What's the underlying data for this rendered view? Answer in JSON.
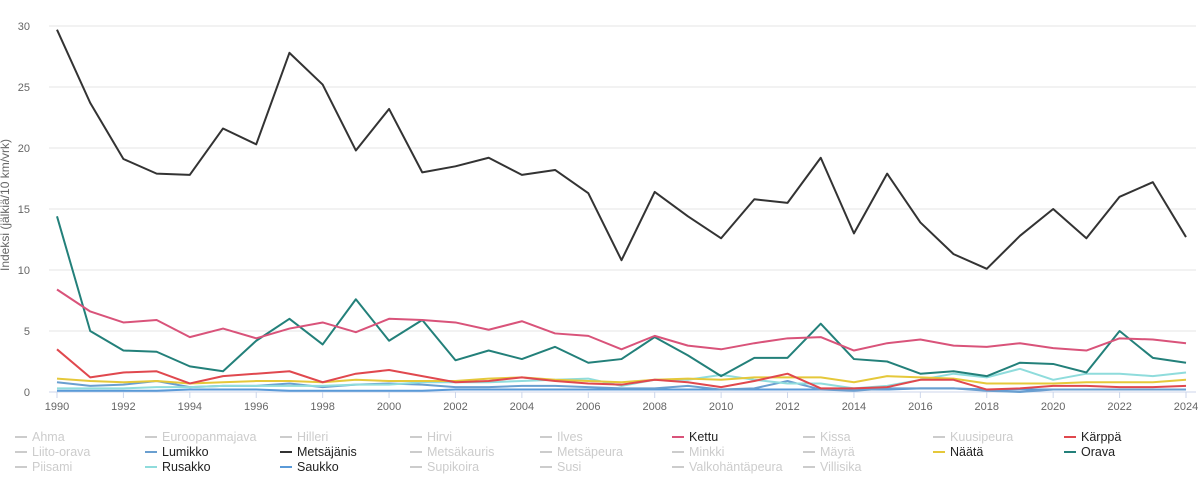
{
  "chart_data": {
    "type": "line",
    "title": "",
    "xlabel": "",
    "ylabel": "Indeksi (jälkiä/10 km/vrk)",
    "ylim": [
      0,
      30
    ],
    "yticks": [
      "0",
      "5",
      "10",
      "15",
      "20",
      "25",
      "30"
    ],
    "xlim": [
      1990,
      2024
    ],
    "xticks": [
      "1990",
      "1992",
      "1994",
      "1996",
      "1998",
      "2000",
      "2002",
      "2004",
      "2006",
      "2008",
      "2010",
      "2012",
      "2014",
      "2016",
      "2018",
      "2020",
      "2022",
      "2024"
    ],
    "grid": true,
    "legend_position": "bottom",
    "x": [
      1990,
      1991,
      1992,
      1993,
      1994,
      1995,
      1996,
      1997,
      1998,
      1999,
      2000,
      2001,
      2002,
      2003,
      2004,
      2005,
      2006,
      2007,
      2008,
      2009,
      2010,
      2011,
      2012,
      2013,
      2014,
      2015,
      2016,
      2017,
      2018,
      2019,
      2020,
      2021,
      2022,
      2023,
      2024
    ],
    "series": [
      {
        "name": "Saukko",
        "color": "#5a9ad8",
        "values": [
          0.1,
          0.1,
          0.1,
          0.1,
          0.2,
          0.2,
          0.2,
          0.1,
          0.1,
          0.1,
          0.1,
          0.1,
          0.2,
          0.2,
          0.2,
          0.2,
          0.2,
          0.2,
          0.2,
          0.2,
          0.2,
          0.2,
          0.2,
          0.2,
          0.2,
          0.2,
          0.3,
          0.3,
          0.2,
          0.2,
          0.2,
          0.2,
          0.2,
          0.2,
          0.2
        ]
      },
      {
        "name": "Lumikko",
        "color": "#6a9fd0",
        "values": [
          0.8,
          0.5,
          0.6,
          0.9,
          0.4,
          0.5,
          0.5,
          0.7,
          0.4,
          0.6,
          0.7,
          0.6,
          0.4,
          0.4,
          0.5,
          0.5,
          0.4,
          0.3,
          0.3,
          0.5,
          0.2,
          0.3,
          0.9,
          0.2,
          0.1,
          0.3,
          0.3,
          0.3,
          0.1,
          0.0,
          0.2,
          0.2,
          0.2,
          0.2,
          0.2
        ]
      },
      {
        "name": "Rusakko",
        "color": "#8fdcdc",
        "values": [
          0.3,
          0.3,
          0.3,
          0.4,
          0.4,
          0.5,
          0.5,
          0.5,
          0.5,
          0.6,
          0.6,
          0.8,
          0.8,
          0.8,
          0.9,
          1.0,
          1.1,
          0.5,
          1.0,
          1.0,
          1.4,
          1.0,
          0.7,
          0.7,
          0.3,
          0.5,
          1.0,
          1.5,
          1.2,
          1.9,
          1.0,
          1.5,
          1.5,
          1.3,
          1.6
        ]
      },
      {
        "name": "Näätä",
        "color": "#e5c83a",
        "values": [
          1.1,
          0.9,
          0.8,
          0.9,
          0.7,
          0.8,
          0.9,
          0.9,
          0.8,
          1.0,
          0.9,
          0.9,
          0.9,
          1.1,
          1.2,
          1.0,
          0.9,
          0.8,
          1.0,
          1.1,
          1.0,
          1.2,
          1.2,
          1.2,
          0.8,
          1.3,
          1.2,
          1.1,
          0.7,
          0.7,
          0.7,
          0.8,
          0.8,
          0.8,
          1.0
        ]
      },
      {
        "name": "Kärppä",
        "color": "#e0484e",
        "values": [
          3.5,
          1.2,
          1.6,
          1.7,
          0.7,
          1.3,
          1.5,
          1.7,
          0.8,
          1.5,
          1.8,
          1.3,
          0.8,
          0.9,
          1.2,
          0.9,
          0.7,
          0.6,
          1.0,
          0.8,
          0.4,
          0.9,
          1.5,
          0.3,
          0.3,
          0.4,
          1.0,
          1.0,
          0.2,
          0.3,
          0.5,
          0.5,
          0.4,
          0.4,
          0.5
        ]
      },
      {
        "name": "Orava",
        "color": "#23807a",
        "values": [
          14.4,
          5.0,
          3.4,
          3.3,
          2.1,
          1.7,
          4.2,
          6.0,
          3.9,
          7.6,
          4.2,
          5.9,
          2.6,
          3.4,
          2.7,
          3.7,
          2.4,
          2.7,
          4.5,
          3.0,
          1.3,
          2.8,
          2.8,
          5.6,
          2.7,
          2.5,
          1.5,
          1.7,
          1.3,
          2.4,
          2.3,
          1.6,
          5.0,
          2.8,
          2.4
        ]
      },
      {
        "name": "Kettu",
        "color": "#d9537a",
        "values": [
          8.4,
          6.6,
          5.7,
          5.9,
          4.5,
          5.2,
          4.4,
          5.2,
          5.7,
          4.9,
          6.0,
          5.9,
          5.7,
          5.1,
          5.8,
          4.8,
          4.6,
          3.5,
          4.6,
          3.8,
          3.5,
          4.0,
          4.4,
          4.5,
          3.4,
          4.0,
          4.3,
          3.8,
          3.7,
          4.0,
          3.6,
          3.4,
          4.4,
          4.3,
          4.0
        ]
      },
      {
        "name": "Metsäjänis",
        "color": "#333333",
        "values": [
          29.7,
          23.7,
          19.1,
          17.9,
          17.8,
          21.6,
          20.3,
          27.8,
          25.2,
          19.8,
          23.2,
          18.0,
          18.5,
          19.2,
          17.8,
          18.2,
          16.3,
          10.8,
          16.4,
          14.4,
          12.6,
          15.8,
          15.5,
          19.2,
          13.0,
          17.9,
          13.9,
          11.3,
          10.1,
          12.8,
          15.0,
          12.6,
          16.0,
          17.2,
          12.7
        ]
      }
    ],
    "legend": [
      {
        "name": "Ahma",
        "active": false
      },
      {
        "name": "Euroopanmajava",
        "active": false
      },
      {
        "name": "Hilleri",
        "active": false
      },
      {
        "name": "Hirvi",
        "active": false
      },
      {
        "name": "Ilves",
        "active": false
      },
      {
        "name": "Kettu",
        "active": true,
        "color": "#d9537a"
      },
      {
        "name": "Kissa",
        "active": false
      },
      {
        "name": "Kuusipeura",
        "active": false
      },
      {
        "name": "Kärppä",
        "active": true,
        "color": "#e0484e"
      },
      {
        "name": "Liito-orava",
        "active": false
      },
      {
        "name": "Lumikko",
        "active": true,
        "color": "#6a9fd0"
      },
      {
        "name": "Metsäjänis",
        "active": true,
        "color": "#333333"
      },
      {
        "name": "Metsäkauris",
        "active": false
      },
      {
        "name": "Metsäpeura",
        "active": false
      },
      {
        "name": "Minkki",
        "active": false
      },
      {
        "name": "Mäyrä",
        "active": false
      },
      {
        "name": "Näätä",
        "active": true,
        "color": "#e5c83a"
      },
      {
        "name": "Orava",
        "active": true,
        "color": "#23807a"
      },
      {
        "name": "Piisami",
        "active": false
      },
      {
        "name": "Rusakko",
        "active": true,
        "color": "#8fdcdc"
      },
      {
        "name": "Saukko",
        "active": true,
        "color": "#5a9ad8"
      },
      {
        "name": "Supikoira",
        "active": false
      },
      {
        "name": "Susi",
        "active": false
      },
      {
        "name": "Valkohäntäpeura",
        "active": false
      },
      {
        "name": "Villisika",
        "active": false
      }
    ]
  }
}
